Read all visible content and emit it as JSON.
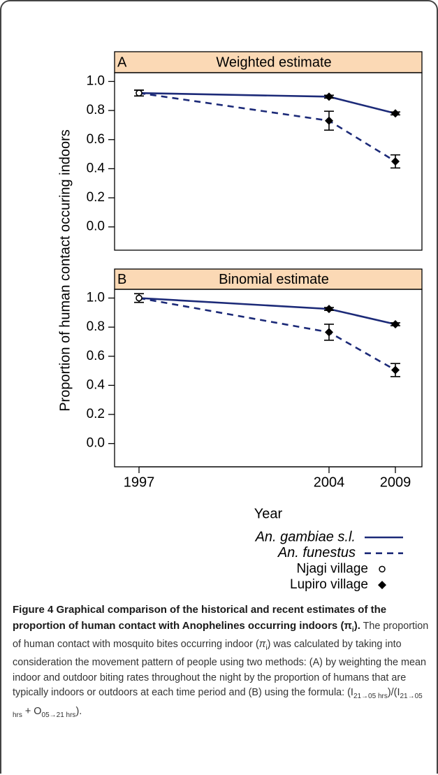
{
  "chart_data": {
    "type": "line",
    "y_label": "Proportion of human contact occuring indoors",
    "x_label": "Year",
    "categories": [
      "1997",
      "2004",
      "2009"
    ],
    "ylim": [
      -0.16,
      1.06
    ],
    "yticks": [
      {
        "value": 0,
        "label": "0.0"
      },
      0.2,
      0.4,
      0.6,
      0.8,
      {
        "value": 1,
        "label": "1.0"
      }
    ],
    "header_color": "#fbd9b5",
    "legend_markers": [
      {
        "name": "Njagi village",
        "shape": "circle"
      },
      {
        "name": "Lupiro village",
        "shape": "diamond"
      }
    ],
    "category_markers": [
      0,
      1,
      1
    ],
    "panels": [
      {
        "label": "A",
        "title": "Weighted estimate",
        "series": [
          {
            "name": "An. gambiae s.l.",
            "color": "#1c2a78",
            "dashed": false,
            "values": [
              0.92,
              0.895,
              0.78
            ],
            "errors": [
              0.02,
              0.01,
              0.01
            ]
          },
          {
            "name": "An. funestus",
            "color": "#1c2a78",
            "dashed": true,
            "values": [
              0.92,
              0.73,
              0.45
            ],
            "errors": [
              0.02,
              0.065,
              0.045
            ]
          }
        ]
      },
      {
        "label": "B",
        "title": "Binomial estimate",
        "series": [
          {
            "name": "An. gambiae s.l.",
            "color": "#1c2a78",
            "dashed": false,
            "values": [
              1.0,
              0.925,
              0.82
            ],
            "errors": [
              0.03,
              0.01,
              0.01
            ]
          },
          {
            "name": "An. funestus",
            "color": "#1c2a78",
            "dashed": true,
            "values": [
              1.0,
              0.765,
              0.505
            ],
            "errors": [
              0.03,
              0.055,
              0.045
            ]
          }
        ]
      }
    ]
  },
  "caption": {
    "runs": [
      {
        "text": "Figure 4 Graphical comparison of the historical and recent estimates of the proportion of human contact with Anophelines occurring indoors (π",
        "style": "bold"
      },
      {
        "text": "i",
        "style": "bold-sub"
      },
      {
        "text": ").",
        "style": "bold"
      },
      {
        "text": " The proportion of human contact with mosquito bites occurring indoor (",
        "style": "normal"
      },
      {
        "text": "π",
        "style": "italic"
      },
      {
        "text": "i",
        "style": "sub"
      },
      {
        "text": ") was calculated by taking into consideration the movement pattern of people using two methods: (A) by weighting the mean indoor and outdoor biting rates throughout the night by the proportion of humans that are typically indoors or outdoors at each time period and (B) using the formula: (I",
        "style": "normal"
      },
      {
        "text": "21→05 hrs",
        "style": "sub"
      },
      {
        "text": ")/(I",
        "style": "normal"
      },
      {
        "text": "21→05 hrs",
        "style": "sub"
      },
      {
        "text": " + O",
        "style": "normal"
      },
      {
        "text": "05→21 hrs",
        "style": "sub"
      },
      {
        "text": ").",
        "style": "normal"
      }
    ]
  }
}
